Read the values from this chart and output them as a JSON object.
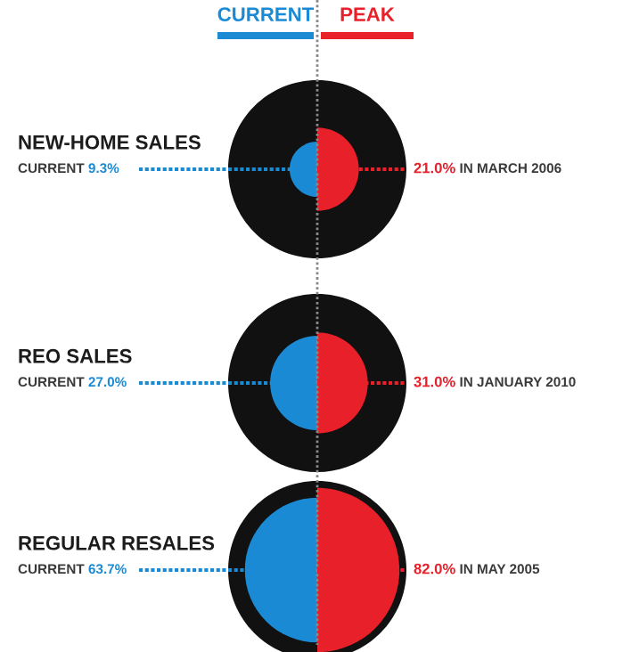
{
  "chart_data": {
    "type": "other",
    "categories": [
      "NEW-HOME SALES",
      "REO SALES",
      "REGULAR RESALES"
    ],
    "series": [
      {
        "name": "CURRENT",
        "color": "#1a8ad4",
        "values": [
          9.3,
          27.0,
          63.7
        ],
        "value_labels": [
          "9.3%",
          "27.0%",
          "63.7%"
        ]
      },
      {
        "name": "PEAK",
        "color": "#e8202a",
        "values": [
          21.0,
          31.0,
          82.0
        ],
        "value_labels": [
          "21.0%",
          "31.0%",
          "82.0%"
        ]
      }
    ],
    "annotations": [
      {
        "text": "IN MARCH 2006",
        "x": "NEW-HOME SALES"
      },
      {
        "text": "IN JANUARY 2010",
        "x": "REO SALES"
      },
      {
        "text": "IN MAY 2005",
        "x": "REGULAR RESALES"
      }
    ]
  }
}
